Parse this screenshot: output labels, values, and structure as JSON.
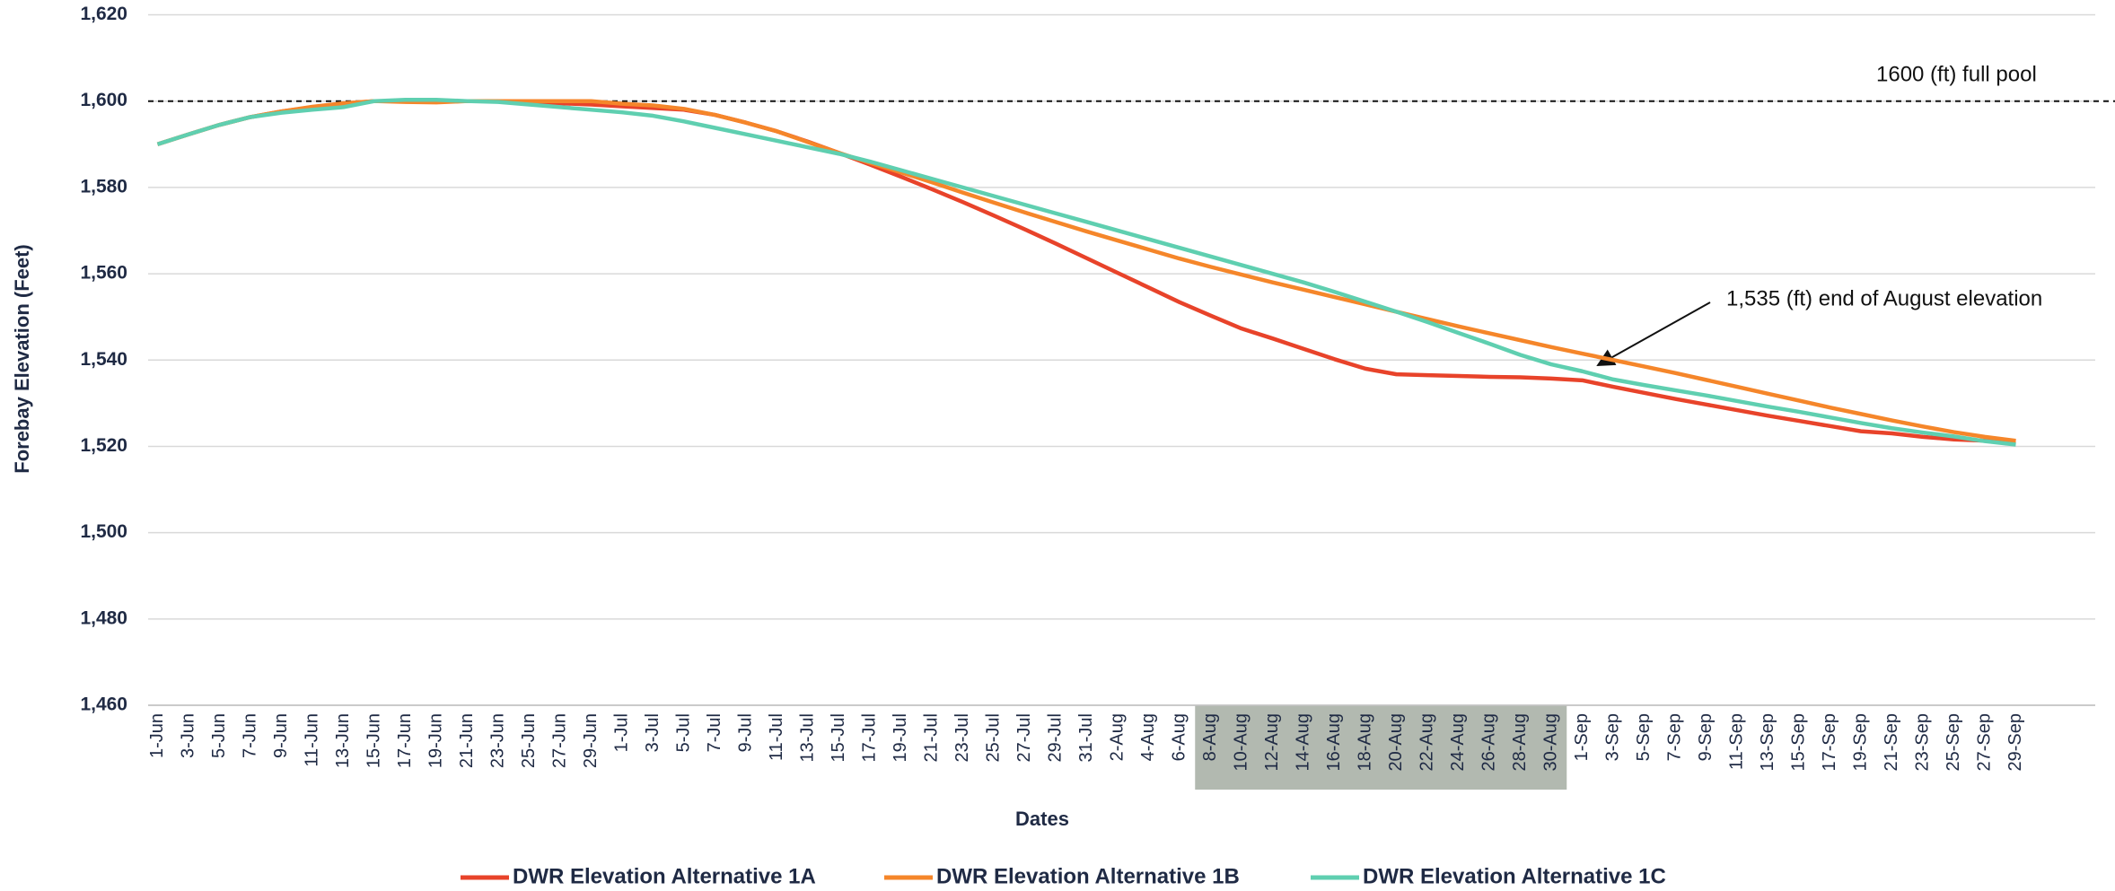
{
  "chart_data": {
    "type": "line",
    "x_label": "Dates",
    "y_label": "Forebay Elevation (Feet)",
    "categories": [
      "1-Jun",
      "3-Jun",
      "5-Jun",
      "7-Jun",
      "9-Jun",
      "11-Jun",
      "13-Jun",
      "15-Jun",
      "17-Jun",
      "19-Jun",
      "21-Jun",
      "23-Jun",
      "25-Jun",
      "27-Jun",
      "29-Jun",
      "1-Jul",
      "3-Jul",
      "5-Jul",
      "7-Jul",
      "9-Jul",
      "11-Jul",
      "13-Jul",
      "15-Jul",
      "17-Jul",
      "19-Jul",
      "21-Jul",
      "23-Jul",
      "25-Jul",
      "27-Jul",
      "29-Jul",
      "31-Jul",
      "2-Aug",
      "4-Aug",
      "6-Aug",
      "8-Aug",
      "10-Aug",
      "12-Aug",
      "14-Aug",
      "16-Aug",
      "18-Aug",
      "20-Aug",
      "22-Aug",
      "24-Aug",
      "26-Aug",
      "28-Aug",
      "30-Aug",
      "1-Sep",
      "3-Sep",
      "5-Sep",
      "7-Sep",
      "9-Sep",
      "11-Sep",
      "13-Sep",
      "15-Sep",
      "17-Sep",
      "19-Sep",
      "21-Sep",
      "23-Sep",
      "25-Sep",
      "27-Sep",
      "29-Sep"
    ],
    "series": [
      {
        "name": "DWR Elevation Alternative 1A",
        "color": "#e8432a",
        "values": [
          1590,
          1592.3,
          1594.5,
          1596.3,
          1597.6,
          1598.6,
          1599.4,
          1600,
          1600,
          1600,
          1600,
          1600,
          1599.8,
          1599.5,
          1599.2,
          1598.8,
          1598.4,
          1598,
          1596.8,
          1595,
          1593,
          1590.6,
          1588,
          1585.3,
          1582.5,
          1579.6,
          1576.6,
          1573.5,
          1570.3,
          1567,
          1563.6,
          1560.2,
          1556.8,
          1553.4,
          1550.3,
          1547.3,
          1545,
          1542.6,
          1540.2,
          1538,
          1536.7,
          1536.5,
          1536.3,
          1536.1,
          1536,
          1535.7,
          1535.3,
          1533.8,
          1532.4,
          1531,
          1529.7,
          1528.4,
          1527.1,
          1525.9,
          1524.7,
          1523.5,
          1523,
          1522.2,
          1521.6,
          1521.3,
          1521.1
        ]
      },
      {
        "name": "DWR Elevation Alternative 1B",
        "color": "#f5862a",
        "values": [
          1590,
          1592.3,
          1594.5,
          1596.3,
          1597.6,
          1598.7,
          1599.5,
          1600,
          1599.8,
          1599.7,
          1600,
          1600,
          1600,
          1600,
          1600,
          1599.4,
          1599,
          1598.2,
          1596.8,
          1595,
          1593,
          1590.5,
          1588,
          1585.7,
          1583.5,
          1581.2,
          1578.8,
          1576.5,
          1574.2,
          1572,
          1569.8,
          1567.7,
          1565.6,
          1563.5,
          1561.6,
          1559.8,
          1558,
          1556.3,
          1554.6,
          1552.9,
          1551.2,
          1549.5,
          1547.8,
          1546.2,
          1544.6,
          1543,
          1541.5,
          1540,
          1538.5,
          1537,
          1535.4,
          1533.8,
          1532.2,
          1530.6,
          1529,
          1527.5,
          1526,
          1524.6,
          1523.3,
          1522.2,
          1521.3
        ]
      },
      {
        "name": "DWR Elevation Alternative 1C",
        "color": "#5fcfb0",
        "values": [
          1590,
          1592.3,
          1594.5,
          1596.3,
          1597.3,
          1598,
          1598.6,
          1600,
          1600.3,
          1600.3,
          1600,
          1599.8,
          1599.2,
          1598.6,
          1598,
          1597.4,
          1596.6,
          1595.3,
          1593.8,
          1592.3,
          1590.8,
          1589.3,
          1587.8,
          1586,
          1584,
          1582,
          1580,
          1578,
          1576,
          1574,
          1572,
          1570,
          1568,
          1566,
          1564,
          1562,
          1560,
          1558,
          1555.8,
          1553.5,
          1551.2,
          1548.8,
          1546.3,
          1543.8,
          1541.2,
          1539,
          1537.4,
          1535.5,
          1534.2,
          1533,
          1531.8,
          1530.5,
          1529.2,
          1528,
          1526.7,
          1525.4,
          1524.2,
          1523.2,
          1522.3,
          1521.2,
          1520.4
        ]
      }
    ],
    "ylim": [
      1460,
      1620
    ],
    "yticks": [
      {
        "value": 1460,
        "label": "1,460"
      },
      {
        "value": 1480,
        "label": "1,480"
      },
      {
        "value": 1500,
        "label": "1,500"
      },
      {
        "value": 1520,
        "label": "1,520"
      },
      {
        "value": 1540,
        "label": "1,540"
      },
      {
        "value": 1560,
        "label": "1,560"
      },
      {
        "value": 1580,
        "label": "1,580"
      },
      {
        "value": 1600,
        "label": "1,600"
      },
      {
        "value": 1620,
        "label": "1,620"
      }
    ],
    "grid": true,
    "highlight": {
      "from": "8-Aug",
      "to": "30-Aug",
      "color": "#b2b9b0"
    },
    "reference_line": {
      "value": 1600,
      "label": "1600 (ft) full pool"
    },
    "annotation": "1,535 (ft) end of August elevation",
    "legend": "bottom"
  }
}
